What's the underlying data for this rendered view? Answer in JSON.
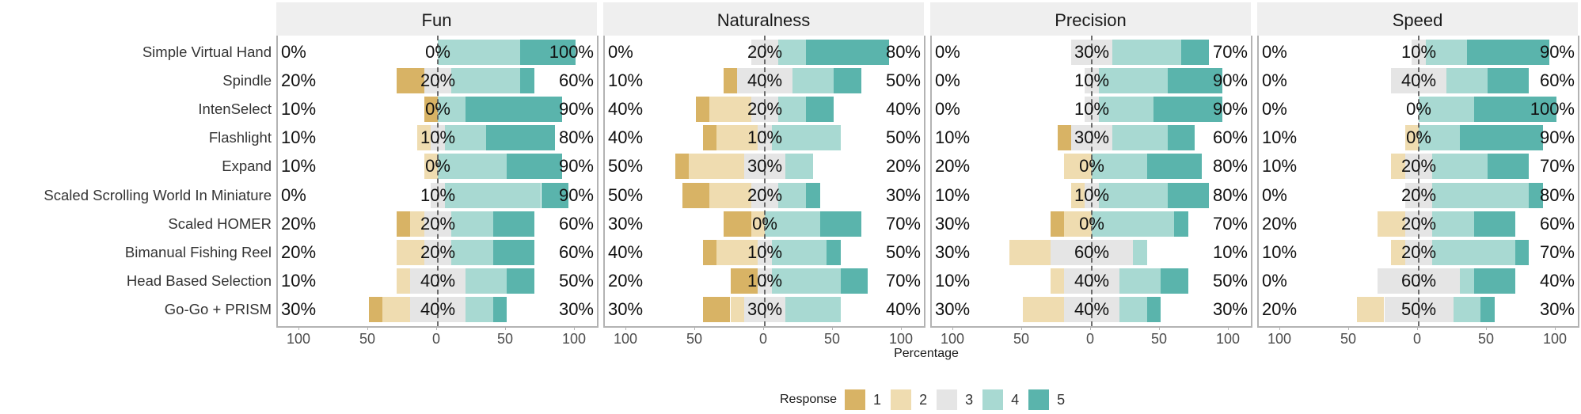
{
  "chart_data": {
    "type": "bar",
    "subtype": "diverging-stacked-likert",
    "title": "",
    "xlabel": "Percentage",
    "ylabel": "",
    "xlim": [
      -100,
      100
    ],
    "x_ticks": [
      "100",
      "50",
      "0",
      "50",
      "100"
    ],
    "grid": false,
    "legend_position": "bottom",
    "legend": {
      "title": "Response",
      "entries": [
        {
          "label": "1",
          "color": "#D8B365"
        },
        {
          "label": "2",
          "color": "#EFDCB0"
        },
        {
          "label": "3",
          "color": "#E5E5E5"
        },
        {
          "label": "4",
          "color": "#A8D9D2"
        },
        {
          "label": "5",
          "color": "#5AB4AC"
        }
      ]
    },
    "categories": [
      "Simple Virtual Hand",
      "Spindle",
      "IntenSelect",
      "Flashlight",
      "Expand",
      "Scaled Scrolling World In Miniature",
      "Scaled HOMER",
      "Bimanual Fishing Reel",
      "Head Based Selection",
      "Go-Go + PRISM"
    ],
    "panels": [
      {
        "name": "Fun",
        "rows": [
          {
            "r1": 0,
            "r2": 0,
            "r3": 0,
            "r4": 60,
            "r5": 40,
            "low": "0%",
            "neutral": "0%",
            "high": "100%"
          },
          {
            "r1": 20,
            "r2": 0,
            "r3": 20,
            "r4": 50,
            "r5": 10,
            "low": "20%",
            "neutral": "20%",
            "high": "60%"
          },
          {
            "r1": 10,
            "r2": 0,
            "r3": 0,
            "r4": 20,
            "r5": 70,
            "low": "10%",
            "neutral": "0%",
            "high": "90%"
          },
          {
            "r1": 0,
            "r2": 10,
            "r3": 10,
            "r4": 30,
            "r5": 50,
            "low": "10%",
            "neutral": "10%",
            "high": "80%"
          },
          {
            "r1": 0,
            "r2": 10,
            "r3": 0,
            "r4": 50,
            "r5": 40,
            "low": "10%",
            "neutral": "0%",
            "high": "90%"
          },
          {
            "r1": 0,
            "r2": 0,
            "r3": 10,
            "r4": 70,
            "r5": 20,
            "low": "0%",
            "neutral": "10%",
            "high": "90%"
          },
          {
            "r1": 10,
            "r2": 10,
            "r3": 20,
            "r4": 30,
            "r5": 30,
            "low": "20%",
            "neutral": "20%",
            "high": "60%"
          },
          {
            "r1": 0,
            "r2": 20,
            "r3": 20,
            "r4": 30,
            "r5": 30,
            "low": "20%",
            "neutral": "20%",
            "high": "60%"
          },
          {
            "r1": 0,
            "r2": 10,
            "r3": 40,
            "r4": 30,
            "r5": 20,
            "low": "10%",
            "neutral": "40%",
            "high": "50%"
          },
          {
            "r1": 10,
            "r2": 20,
            "r3": 40,
            "r4": 20,
            "r5": 10,
            "low": "30%",
            "neutral": "40%",
            "high": "30%"
          }
        ]
      },
      {
        "name": "Naturalness",
        "rows": [
          {
            "r1": 0,
            "r2": 0,
            "r3": 20,
            "r4": 20,
            "r5": 60,
            "low": "0%",
            "neutral": "20%",
            "high": "80%"
          },
          {
            "r1": 10,
            "r2": 0,
            "r3": 40,
            "r4": 30,
            "r5": 20,
            "low": "10%",
            "neutral": "40%",
            "high": "50%"
          },
          {
            "r1": 10,
            "r2": 30,
            "r3": 20,
            "r4": 20,
            "r5": 20,
            "low": "40%",
            "neutral": "20%",
            "high": "40%"
          },
          {
            "r1": 10,
            "r2": 30,
            "r3": 10,
            "r4": 50,
            "r5": 0,
            "low": "40%",
            "neutral": "10%",
            "high": "50%"
          },
          {
            "r1": 10,
            "r2": 40,
            "r3": 30,
            "r4": 20,
            "r5": 0,
            "low": "50%",
            "neutral": "30%",
            "high": "20%"
          },
          {
            "r1": 20,
            "r2": 30,
            "r3": 20,
            "r4": 20,
            "r5": 10,
            "low": "50%",
            "neutral": "20%",
            "high": "30%"
          },
          {
            "r1": 20,
            "r2": 10,
            "r3": 0,
            "r4": 40,
            "r5": 30,
            "low": "30%",
            "neutral": "0%",
            "high": "70%"
          },
          {
            "r1": 10,
            "r2": 30,
            "r3": 10,
            "r4": 40,
            "r5": 10,
            "low": "40%",
            "neutral": "10%",
            "high": "50%"
          },
          {
            "r1": 20,
            "r2": 0,
            "r3": 10,
            "r4": 50,
            "r5": 20,
            "low": "20%",
            "neutral": "10%",
            "high": "70%"
          },
          {
            "r1": 20,
            "r2": 10,
            "r3": 30,
            "r4": 40,
            "r5": 0,
            "low": "30%",
            "neutral": "30%",
            "high": "40%"
          }
        ]
      },
      {
        "name": "Precision",
        "rows": [
          {
            "r1": 0,
            "r2": 0,
            "r3": 30,
            "r4": 50,
            "r5": 20,
            "low": "0%",
            "neutral": "30%",
            "high": "70%"
          },
          {
            "r1": 0,
            "r2": 0,
            "r3": 10,
            "r4": 50,
            "r5": 40,
            "low": "0%",
            "neutral": "10%",
            "high": "90%"
          },
          {
            "r1": 0,
            "r2": 0,
            "r3": 10,
            "r4": 40,
            "r5": 50,
            "low": "0%",
            "neutral": "10%",
            "high": "90%"
          },
          {
            "r1": 10,
            "r2": 0,
            "r3": 30,
            "r4": 40,
            "r5": 20,
            "low": "10%",
            "neutral": "30%",
            "high": "60%"
          },
          {
            "r1": 0,
            "r2": 20,
            "r3": 0,
            "r4": 40,
            "r5": 40,
            "low": "20%",
            "neutral": "0%",
            "high": "80%"
          },
          {
            "r1": 0,
            "r2": 10,
            "r3": 10,
            "r4": 50,
            "r5": 30,
            "low": "10%",
            "neutral": "10%",
            "high": "80%"
          },
          {
            "r1": 10,
            "r2": 20,
            "r3": 0,
            "r4": 60,
            "r5": 10,
            "low": "30%",
            "neutral": "0%",
            "high": "70%"
          },
          {
            "r1": 0,
            "r2": 30,
            "r3": 60,
            "r4": 10,
            "r5": 0,
            "low": "30%",
            "neutral": "60%",
            "high": "10%"
          },
          {
            "r1": 0,
            "r2": 10,
            "r3": 40,
            "r4": 30,
            "r5": 20,
            "low": "10%",
            "neutral": "40%",
            "high": "50%"
          },
          {
            "r1": 0,
            "r2": 30,
            "r3": 40,
            "r4": 20,
            "r5": 10,
            "low": "30%",
            "neutral": "40%",
            "high": "30%"
          }
        ]
      },
      {
        "name": "Speed",
        "rows": [
          {
            "r1": 0,
            "r2": 0,
            "r3": 10,
            "r4": 30,
            "r5": 60,
            "low": "0%",
            "neutral": "10%",
            "high": "90%"
          },
          {
            "r1": 0,
            "r2": 0,
            "r3": 40,
            "r4": 30,
            "r5": 30,
            "low": "0%",
            "neutral": "40%",
            "high": "60%"
          },
          {
            "r1": 0,
            "r2": 0,
            "r3": 0,
            "r4": 40,
            "r5": 60,
            "low": "0%",
            "neutral": "0%",
            "high": "100%"
          },
          {
            "r1": 0,
            "r2": 10,
            "r3": 0,
            "r4": 30,
            "r5": 60,
            "low": "10%",
            "neutral": "0%",
            "high": "90%"
          },
          {
            "r1": 0,
            "r2": 10,
            "r3": 20,
            "r4": 40,
            "r5": 30,
            "low": "10%",
            "neutral": "20%",
            "high": "70%"
          },
          {
            "r1": 0,
            "r2": 0,
            "r3": 20,
            "r4": 70,
            "r5": 10,
            "low": "0%",
            "neutral": "20%",
            "high": "80%"
          },
          {
            "r1": 0,
            "r2": 20,
            "r3": 20,
            "r4": 30,
            "r5": 30,
            "low": "20%",
            "neutral": "20%",
            "high": "60%"
          },
          {
            "r1": 0,
            "r2": 10,
            "r3": 20,
            "r4": 60,
            "r5": 10,
            "low": "10%",
            "neutral": "20%",
            "high": "70%"
          },
          {
            "r1": 0,
            "r2": 0,
            "r3": 60,
            "r4": 10,
            "r5": 30,
            "low": "0%",
            "neutral": "60%",
            "high": "40%"
          },
          {
            "r1": 0,
            "r2": 20,
            "r3": 50,
            "r4": 20,
            "r5": 10,
            "low": "20%",
            "neutral": "50%",
            "high": "30%"
          }
        ]
      }
    ]
  },
  "axis": {
    "title": "Percentage"
  },
  "legend": {
    "title": "Response",
    "labels": [
      "1",
      "2",
      "3",
      "4",
      "5"
    ]
  }
}
